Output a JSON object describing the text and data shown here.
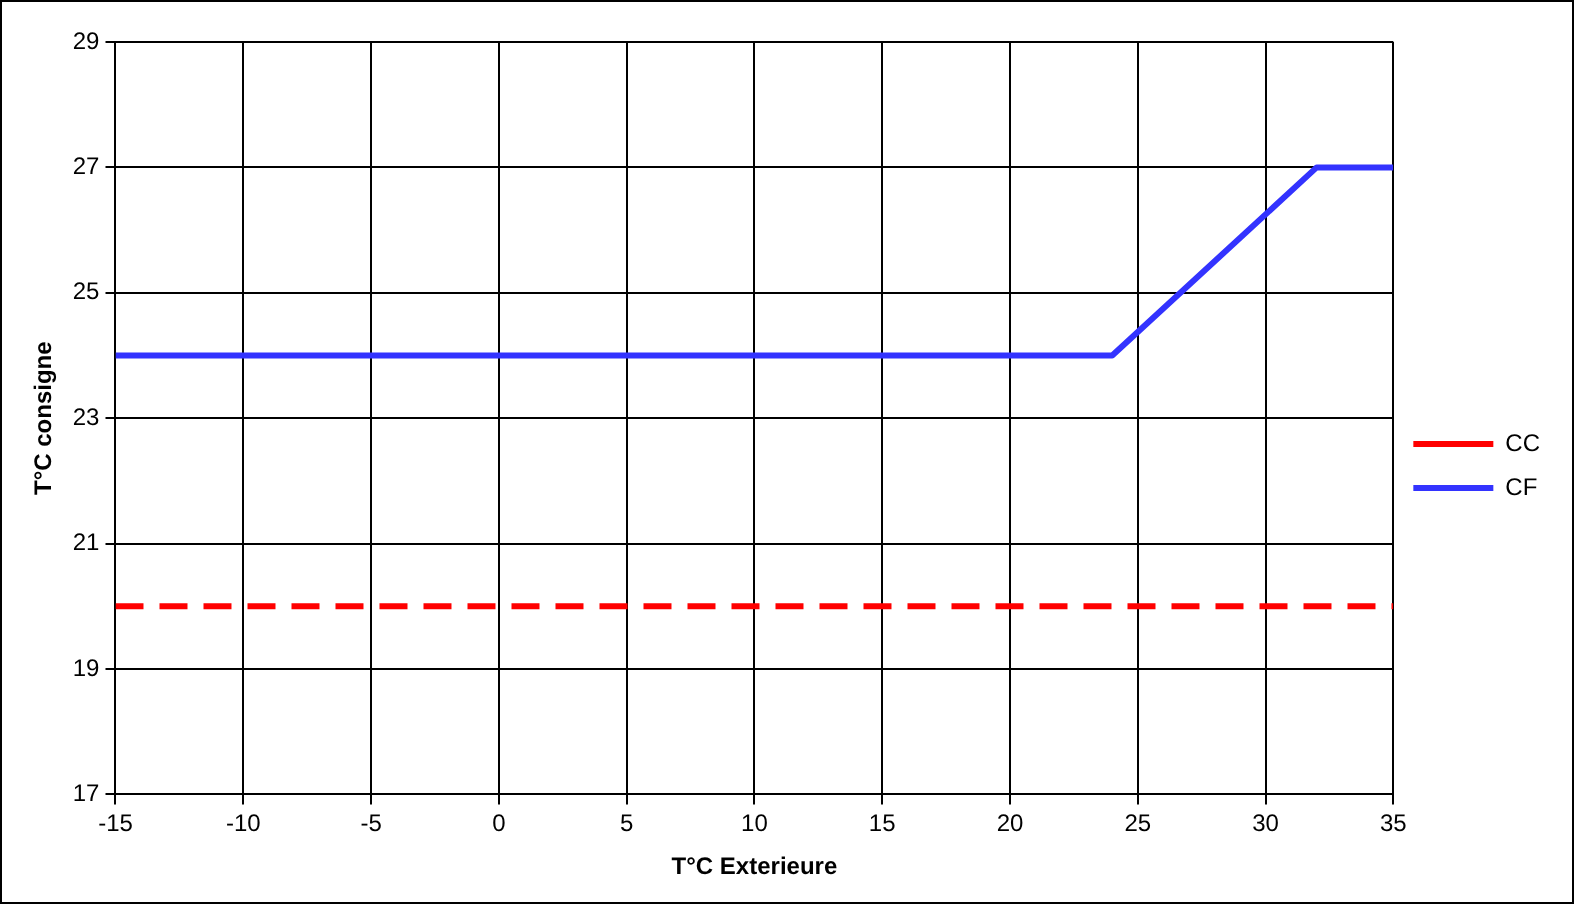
{
  "chart_data": {
    "type": "line",
    "xlabel": "T°C Exterieure",
    "ylabel": "T°C consigne",
    "xlim": [
      -15,
      35
    ],
    "xticks": [
      -15,
      -10,
      -5,
      0,
      5,
      10,
      15,
      20,
      25,
      30,
      35
    ],
    "ylim": [
      17,
      29
    ],
    "yticks": [
      17,
      19,
      21,
      23,
      25,
      27,
      29
    ],
    "grid": true,
    "legend": "right",
    "marker": "none",
    "series": [
      {
        "name": "CC",
        "color": "#ff0000",
        "line_style": "dashed",
        "x": [
          -15,
          35
        ],
        "values": [
          20,
          20
        ]
      },
      {
        "name": "CF",
        "color": "#3333ff",
        "line_style": "solid",
        "x": [
          -15,
          24,
          32,
          35
        ],
        "values": [
          24,
          24,
          27,
          27
        ]
      }
    ]
  }
}
